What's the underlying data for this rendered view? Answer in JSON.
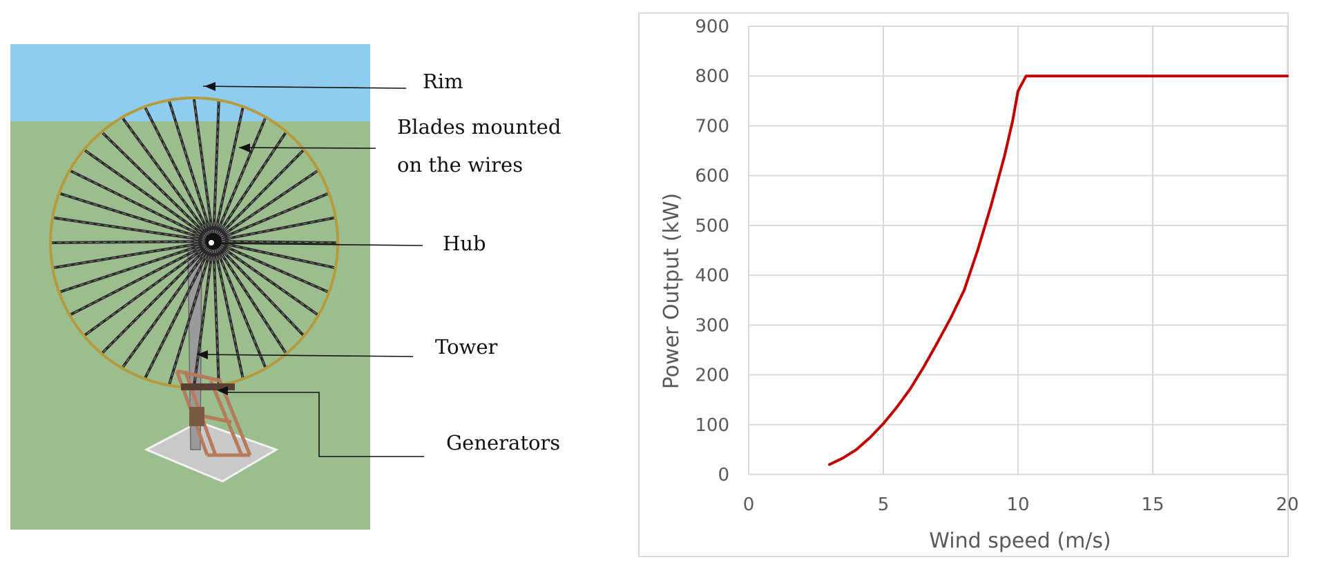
{
  "diagram": {
    "labels": {
      "rim": "Rim",
      "blades_line1": "Blades   mounted",
      "blades_line2": "on the wires",
      "hub": "Hub",
      "tower": "Tower",
      "generators": "Generators"
    },
    "colors": {
      "sky": "#8fcdf0",
      "ground": "#9cbd8e",
      "rim": "#b59a3e",
      "spokes": "#2b2b2b",
      "frame": "#b77a5a"
    }
  },
  "chart_data": {
    "type": "line",
    "title": "",
    "xlabel": "Wind speed (m/s)",
    "ylabel": "Power Output (kW)",
    "xlim": [
      0,
      20
    ],
    "ylim": [
      0,
      900
    ],
    "xticks": [
      0,
      5,
      10,
      15,
      20
    ],
    "yticks": [
      0,
      100,
      200,
      300,
      400,
      500,
      600,
      700,
      800,
      900
    ],
    "grid": true,
    "series": [
      {
        "color": "#c00000",
        "x": [
          3,
          3.5,
          4,
          4.5,
          5,
          5.5,
          6,
          6.5,
          7,
          7.5,
          8,
          8.5,
          9,
          9.5,
          9.8,
          10,
          10.3,
          11,
          12,
          15,
          20
        ],
        "y": [
          20,
          33,
          50,
          74,
          102,
          135,
          172,
          216,
          264,
          314,
          370,
          450,
          540,
          640,
          710,
          770,
          800,
          800,
          800,
          800,
          800
        ]
      }
    ]
  }
}
